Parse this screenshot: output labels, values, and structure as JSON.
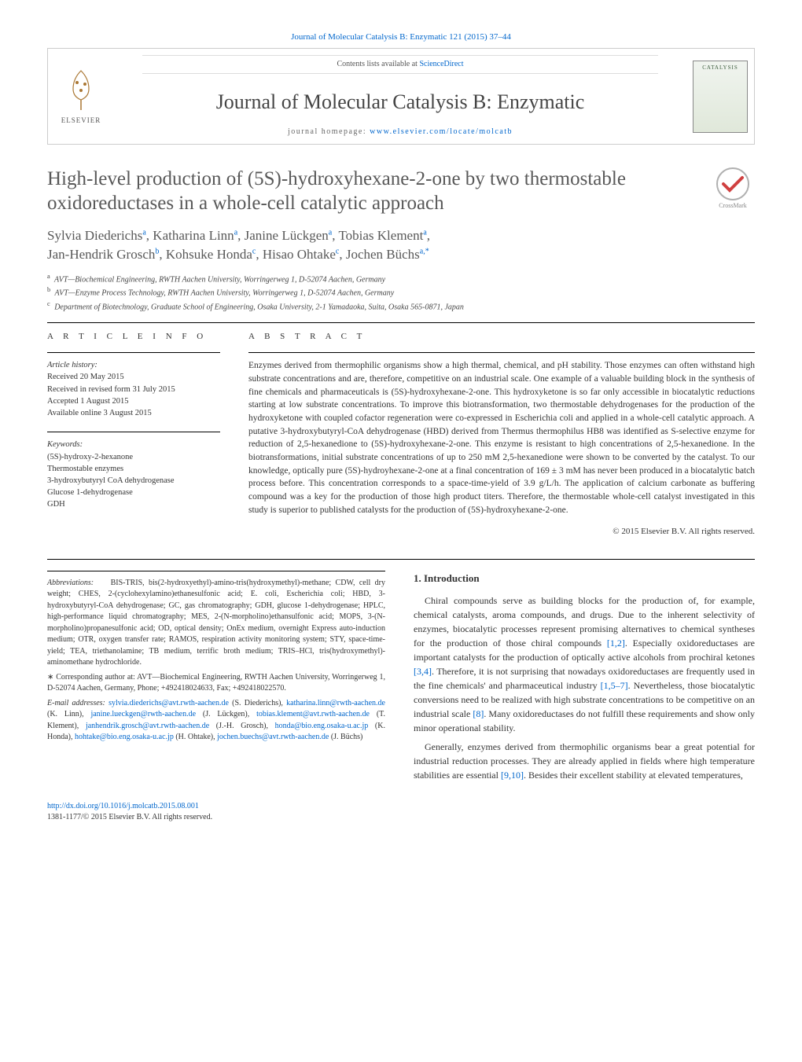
{
  "top_citation": {
    "text": "Journal of Molecular Catalysis B: Enzymatic 121 (2015) 37–44",
    "link_color": "#0066cc"
  },
  "header": {
    "contents_label": "Contents lists available at ",
    "contents_link": "ScienceDirect",
    "journal_name": "Journal of Molecular Catalysis B: Enzymatic",
    "homepage_label": "journal homepage: ",
    "homepage_url": "www.elsevier.com/locate/molcatb",
    "elsevier_label": "ELSEVIER",
    "cover_label": "CATALYSIS"
  },
  "crossmark_label": "CrossMark",
  "article": {
    "title": "High-level production of (5S)-hydroxyhexane-2-one by two thermostable oxidoreductases in a whole-cell catalytic approach",
    "authors_html": [
      {
        "name": "Sylvia Diederichs",
        "aff": "a"
      },
      {
        "name": "Katharina Linn",
        "aff": "a"
      },
      {
        "name": "Janine Lückgen",
        "aff": "a"
      },
      {
        "name": "Tobias Klement",
        "aff": "a"
      },
      {
        "name": "Jan-Hendrik Grosch",
        "aff": "b"
      },
      {
        "name": "Kohsuke Honda",
        "aff": "c"
      },
      {
        "name": "Hisao Ohtake",
        "aff": "c"
      },
      {
        "name": "Jochen Büchs",
        "aff": "a,*"
      }
    ],
    "affiliations": [
      {
        "sup": "a",
        "text": "AVT—Biochemical Engineering, RWTH Aachen University, Worringerweg 1, D-52074 Aachen, Germany"
      },
      {
        "sup": "b",
        "text": "AVT—Enzyme Process Technology, RWTH Aachen University, Worringerweg 1, D-52074 Aachen, Germany"
      },
      {
        "sup": "c",
        "text": "Department of Biotechnology, Graduate School of Engineering, Osaka University, 2-1 Yamadaoka, Suita, Osaka 565-0871, Japan"
      }
    ]
  },
  "info": {
    "label": "a r t i c l e    i n f o",
    "history_hdr": "Article history:",
    "history": [
      "Received 20 May 2015",
      "Received in revised form 31 July 2015",
      "Accepted 1 August 2015",
      "Available online 3 August 2015"
    ],
    "keywords_hdr": "Keywords:",
    "keywords": [
      "(5S)-hydroxy-2-hexanone",
      "Thermostable enzymes",
      "3-hydroxybutyryl CoA dehydrogenase",
      "Glucose 1-dehydrogenase",
      "GDH"
    ]
  },
  "abstract": {
    "label": "a b s t r a c t",
    "text": "Enzymes derived from thermophilic organisms show a high thermal, chemical, and pH stability. Those enzymes can often withstand high substrate concentrations and are, therefore, competitive on an industrial scale. One example of a valuable building block in the synthesis of fine chemicals and pharmaceuticals is (5S)-hydroxyhexane-2-one. This hydroxyketone is so far only accessible in biocatalytic reductions starting at low substrate concentrations. To improve this biotransformation, two thermostable dehydrogenases for the production of the hydroxyketone with coupled cofactor regeneration were co-expressed in Escherichia coli and applied in a whole-cell catalytic approach. A putative 3-hydroxybutyryl-CoA dehydrogenase (HBD) derived from Thermus thermophilus HB8 was identified as S-selective enzyme for reduction of 2,5-hexanedione to (5S)-hydroxyhexane-2-one. This enzyme is resistant to high concentrations of 2,5-hexanedione. In the biotransformations, initial substrate concentrations of up to 250 mM 2,5-hexanedione were shown to be converted by the catalyst. To our knowledge, optically pure (5S)-hydroyhexane-2-one at a final concentration of 169 ± 3 mM has never been produced in a biocatalytic batch process before. This concentration corresponds to a space-time-yield of 3.9 g/L/h. The application of calcium carbonate as buffering compound was a key for the production of those high product titers. Therefore, the thermostable whole-cell catalyst investigated in this study is superior to published catalysts for the production of (5S)-hydroxyhexane-2-one.",
    "copyright": "© 2015 Elsevier B.V. All rights reserved."
  },
  "footnotes": {
    "abbrev_label": "Abbreviations:",
    "abbrev_text": "BIS-TRIS, bis(2-hydroxyethyl)-amino-tris(hydroxymethyl)-methane; CDW, cell dry weight; CHES, 2-(cyclohexylamino)ethanesulfonic acid; E. coli, Escherichia coli; HBD, 3-hydroxybutyryl-CoA dehydrogenase; GC, gas chromatography; GDH, glucose 1-dehydrogenase; HPLC, high-performance liquid chromatography; MES, 2-(N-morpholino)ethansulfonic acid; MOPS, 3-(N-morpholino)propanesulfonic acid; OD, optical density; OnEx medium, overnight Express auto-induction medium; OTR, oxygen transfer rate; RAMOS, respiration activity monitoring system; STY, space-time-yield; TEA, triethanolamine; TB medium, terrific broth medium; TRIS–HCl, tris(hydroxymethyl)-aminomethane hydrochloride.",
    "corr_label": "∗ Corresponding author at: AVT—Biochemical Engineering, RWTH Aachen University, Worringerweg 1, D-52074 Aachen, Germany, Phone; +492418024633, Fax; +492418022570.",
    "email_label": "E-mail addresses:",
    "emails": [
      {
        "addr": "sylvia.diederichs@avt.rwth-aachen.de",
        "who": "(S. Diederichs)"
      },
      {
        "addr": "katharina.linn@rwth-aachen.de",
        "who": "(K. Linn)"
      },
      {
        "addr": "janine.lueckgen@rwth-aachen.de",
        "who": "(J. Lückgen)"
      },
      {
        "addr": "tobias.klement@avt.rwth-aachen.de",
        "who": "(T. Klement)"
      },
      {
        "addr": "janhendrik.grosch@avt.rwth-aachen.de",
        "who": "(J.-H. Grosch)"
      },
      {
        "addr": "honda@bio.eng.osaka-u.ac.jp",
        "who": "(K. Honda)"
      },
      {
        "addr": "hohtake@bio.eng.osaka-u.ac.jp",
        "who": "(H. Ohtake)"
      },
      {
        "addr": "jochen.buechs@avt.rwth-aachen.de",
        "who": "(J. Büchs)"
      }
    ]
  },
  "intro": {
    "heading": "1. Introduction",
    "para1": "Chiral compounds serve as building blocks for the production of, for example, chemical catalysts, aroma compounds, and drugs. Due to the inherent selectivity of enzymes, biocatalytic processes represent promising alternatives to chemical syntheses for the production of those chiral compounds ",
    "ref1": "[1,2]",
    "para1b": ". Especially oxidoreductases are important catalysts for the production of optically active alcohols from prochiral ketones ",
    "ref2": "[3,4]",
    "para1c": ". Therefore, it is not surprising that nowadays oxidoreductases are frequently used in the fine chemicals' and pharmaceutical industry ",
    "ref3": "[1,5–7]",
    "para1d": ". Nevertheless, those biocatalytic conversions need to be realized with high substrate concentrations to be competitive on an industrial scale ",
    "ref4": "[8]",
    "para1e": ". Many oxidoreductases do not fulfill these requirements and show only minor operational stability.",
    "para2": "Generally, enzymes derived from thermophilic organisms bear a great potential for industrial reduction processes. They are already applied in fields where high temperature stabilities are essential ",
    "ref5": "[9,10]",
    "para2b": ". Besides their excellent stability at elevated temperatures,"
  },
  "footer": {
    "doi_label": "http://dx.doi.org/10.1016/j.molcatb.2015.08.001",
    "issn": "1381-1177/© 2015 Elsevier B.V. All rights reserved."
  },
  "colors": {
    "link": "#0066cc",
    "text": "#333333",
    "heading": "#585858",
    "border": "#cccccc"
  }
}
